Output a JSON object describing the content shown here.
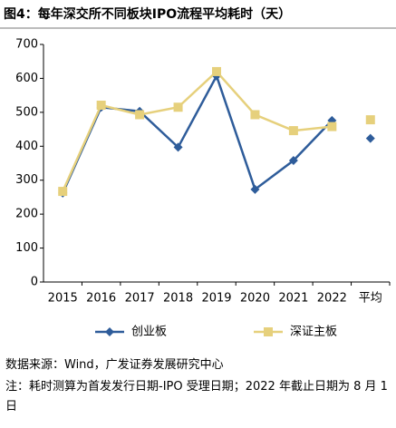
{
  "chart_data": {
    "type": "line",
    "title": "图4：每年深交所不同板块IPO流程平均耗时（天）",
    "categories": [
      "2015",
      "2016",
      "2017",
      "2018",
      "2019",
      "2020",
      "2021",
      "2022"
    ],
    "average_label": "平均",
    "series": [
      {
        "name": "创业板",
        "color": "#2e5c9a",
        "marker": "diamond",
        "values": [
          262,
          515,
          503,
          397,
          607,
          273,
          358,
          476
        ],
        "average": 423
      },
      {
        "name": "深证主板",
        "color": "#e6d07c",
        "marker": "square",
        "values": [
          267,
          521,
          493,
          515,
          620,
          493,
          446,
          458
        ],
        "average": 478
      }
    ],
    "ylim": [
      0,
      700
    ],
    "yticks": [
      0,
      100,
      200,
      300,
      400,
      500,
      600,
      700
    ],
    "grid": false,
    "source": "数据来源：Wind，广发证券发展研究中心",
    "note": "注：耗时测算为首发发行日期-IPO 受理日期；2022 年截止日期为 8 月 1 日"
  }
}
